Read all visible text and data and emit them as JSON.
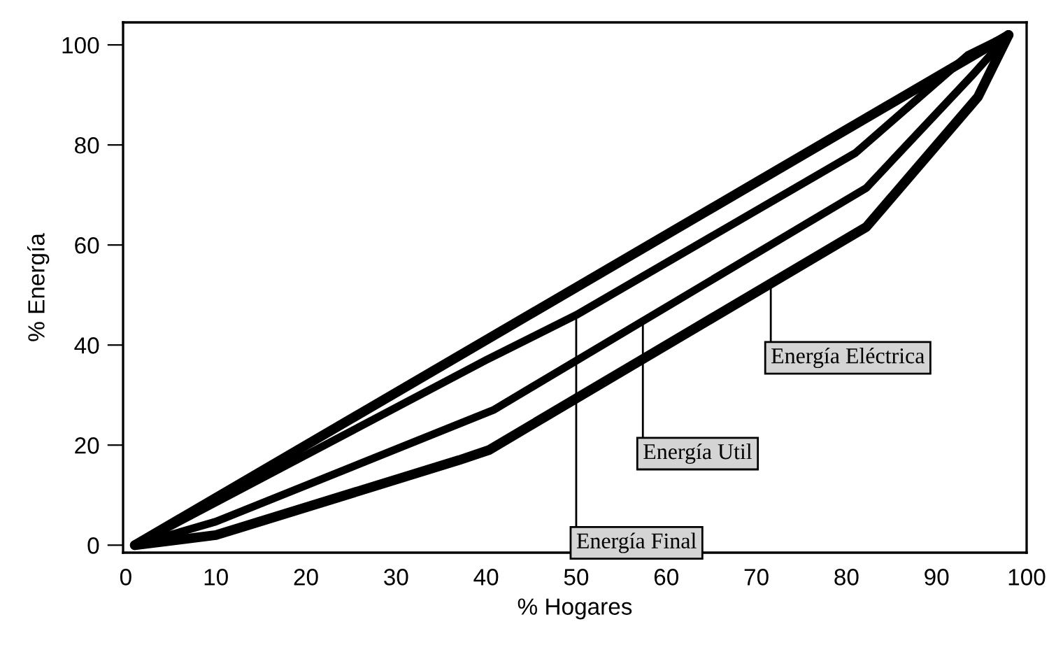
{
  "chart_data": {
    "type": "line",
    "xlabel": "% Hogares",
    "ylabel": "% Energía",
    "xlim": [
      -0.3,
      100
    ],
    "ylim": [
      -1.5,
      104.5
    ],
    "xticks": [
      0,
      10,
      20,
      30,
      40,
      50,
      60,
      70,
      80,
      90,
      100
    ],
    "yticks": [
      0,
      20,
      40,
      60,
      80,
      100
    ],
    "grid": false,
    "marker": "none",
    "line_style": "solid",
    "series": [
      {
        "color": "#000000",
        "x": [
          1,
          98
        ],
        "values": [
          0,
          102
        ]
      },
      {
        "color": "#000000",
        "x": [
          1,
          40,
          50,
          81,
          93.5,
          98
        ],
        "values": [
          0,
          37,
          46,
          78.4,
          98,
          102
        ]
      },
      {
        "color": "#000000",
        "x": [
          1,
          10,
          40.8,
          82.2,
          94,
          98
        ],
        "values": [
          0,
          4.7,
          27,
          71.4,
          94,
          102
        ]
      },
      {
        "color": "#000000",
        "x": [
          1,
          10,
          37,
          40.3,
          82.2,
          94.6,
          98
        ],
        "values": [
          0,
          2,
          17,
          19,
          63.6,
          89.6,
          102
        ]
      }
    ],
    "annotations": [
      {
        "text": "Energía Final",
        "x": 50,
        "y": 46
      },
      {
        "text": "Energía Util",
        "x": 57.4,
        "y": 44.8
      },
      {
        "text": "Energía Eléctrica",
        "x": 71.6,
        "y": 52.3
      }
    ]
  }
}
